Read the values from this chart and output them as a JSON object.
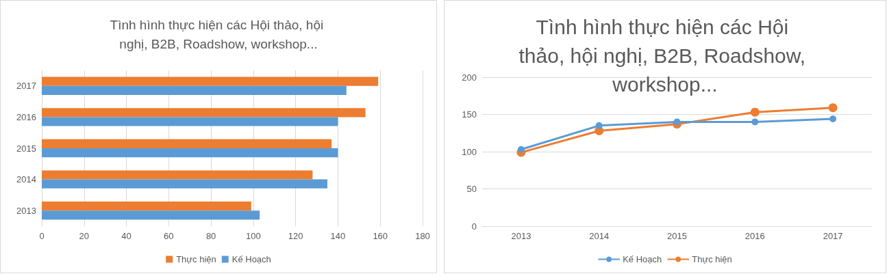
{
  "chart_data": [
    {
      "type": "bar",
      "orientation": "horizontal",
      "title": "Tình hình thực hiện các Hội thảo, hội nghị, B2B, Roadshow, workshop...",
      "categories": [
        "2017",
        "2016",
        "2015",
        "2014",
        "2013"
      ],
      "series": [
        {
          "name": "Thực hiện",
          "color": "#ed7d31",
          "values": [
            159,
            153,
            137,
            128,
            99
          ]
        },
        {
          "name": "Kế Hoạch",
          "color": "#5b9bd5",
          "values": [
            144,
            140,
            140,
            135,
            103
          ]
        }
      ],
      "xlim": [
        0,
        180
      ],
      "xticks": [
        0,
        20,
        40,
        60,
        80,
        100,
        120,
        140,
        160,
        180
      ],
      "grid": "x",
      "legend": "bottom"
    },
    {
      "type": "line",
      "title": "Tình hình thực hiện các Hội thảo, hội nghị, B2B, Roadshow, workshop...",
      "categories": [
        "2013",
        "2014",
        "2015",
        "2016",
        "2017"
      ],
      "series": [
        {
          "name": "Kế Hoạch",
          "color": "#5b9bd5",
          "values": [
            103,
            135,
            140,
            140,
            144
          ]
        },
        {
          "name": "Thực hiện",
          "color": "#ed7d31",
          "values": [
            99,
            128,
            137,
            153,
            159
          ]
        }
      ],
      "ylim": [
        0,
        200
      ],
      "yticks": [
        0,
        50,
        100,
        150,
        200
      ],
      "grid": "y",
      "legend": "bottom",
      "marker": "circle"
    }
  ]
}
